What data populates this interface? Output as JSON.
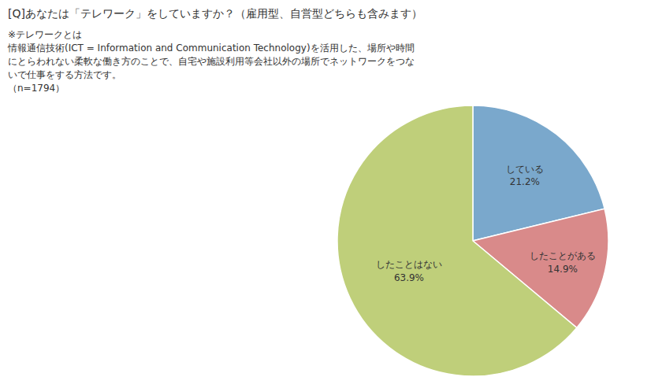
{
  "chart_data": {
    "type": "pie",
    "title": "[Q]あなたは「テレワーク」をしていますか？（雇用型、自営型どちらも含みます）",
    "annotations": [
      "※テレワークとは",
      "情報通信技術(ICT = Information and Communication Technology)を活用した、場所や時間",
      "にとらわれない柔軟な働き方のことで、自宅や施設利用等会社以外の場所でネットワークをつな",
      "いで仕事をする方法です。",
      "（n=1794）"
    ],
    "categories": [
      "している",
      "したことがある",
      "したことはない"
    ],
    "values": [
      21.2,
      14.9,
      63.9
    ],
    "value_labels": [
      "21.2%",
      "14.9%",
      "63.9%"
    ],
    "data_labels": true,
    "colors": [
      "#7aa8cc",
      "#d98a8a",
      "#bfcf7a"
    ]
  }
}
